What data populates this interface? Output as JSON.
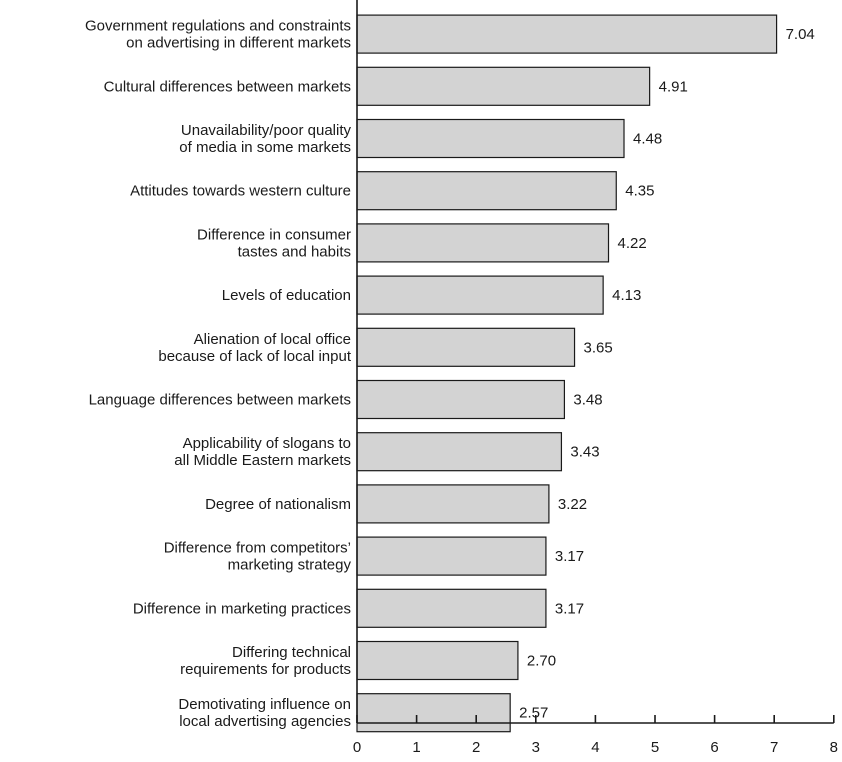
{
  "chart_data": {
    "type": "bar",
    "orientation": "horizontal",
    "title": "",
    "xlabel": "",
    "ylabel": "",
    "xlim": [
      0,
      8
    ],
    "x_ticks": [
      "0",
      "1",
      "2",
      "3",
      "4",
      "5",
      "6",
      "7",
      "8"
    ],
    "grid": false,
    "bar_color": "#d3d3d3",
    "edge_color": "#1a1a1a",
    "categories": [
      [
        "Government regulations and constraints",
        "on advertising in different markets"
      ],
      [
        "Cultural differences between markets"
      ],
      [
        "Unavailability/poor quality",
        "of media in some markets"
      ],
      [
        "Attitudes towards western culture"
      ],
      [
        "Difference in consumer",
        "tastes and habits"
      ],
      [
        "Levels of education"
      ],
      [
        "Alienation of local office",
        "because of lack of local input"
      ],
      [
        "Language differences between markets"
      ],
      [
        "Applicability of slogans to",
        "all Middle Eastern markets"
      ],
      [
        "Degree of nationalism"
      ],
      [
        "Difference from competitors’",
        "marketing strategy"
      ],
      [
        "Difference in marketing practices"
      ],
      [
        "Differing technical",
        "requirements for products"
      ],
      [
        "Demotivating influence on",
        "local advertising agencies"
      ]
    ],
    "values": [
      7.04,
      4.91,
      4.48,
      4.35,
      4.22,
      4.13,
      3.65,
      3.48,
      3.43,
      3.22,
      3.17,
      3.17,
      2.7,
      2.57
    ],
    "value_labels": [
      "7.04",
      "4.91",
      "4.48",
      "4.35",
      "4.22",
      "4.13",
      "3.65",
      "3.48",
      "3.43",
      "3.22",
      "3.17",
      "3.17",
      "2.70",
      "2.57"
    ]
  }
}
